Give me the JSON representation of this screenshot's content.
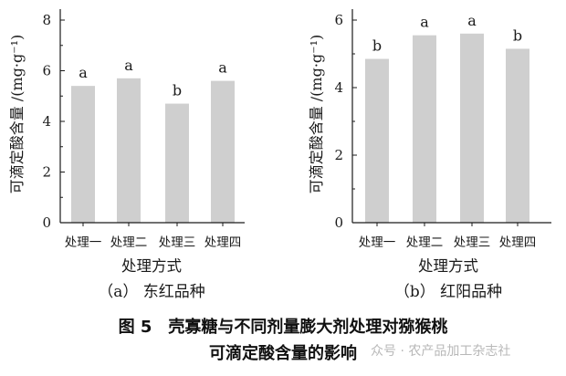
{
  "chart_data": [
    {
      "type": "bar",
      "panel_label": "（a） 东红品种",
      "xlabel": "处理方式",
      "ylabel": "可滴定酸含量 /(mg·g⁻¹)",
      "categories": [
        "处理一",
        "处理二",
        "处理三",
        "处理四"
      ],
      "values": [
        5.4,
        5.7,
        4.7,
        5.6
      ],
      "significance_letters": [
        "a",
        "a",
        "b",
        "a"
      ],
      "ylim": [
        0,
        8
      ],
      "yticks": [
        0,
        2,
        4,
        6,
        8
      ],
      "bar_color": "#cfcfcf",
      "grid": false
    },
    {
      "type": "bar",
      "panel_label": "（b） 红阳品种",
      "xlabel": "处理方式",
      "ylabel": "可滴定酸含量 /(mg·g⁻¹)",
      "categories": [
        "处理一",
        "处理二",
        "处理三",
        "处理四"
      ],
      "values": [
        4.85,
        5.55,
        5.6,
        5.15
      ],
      "significance_letters": [
        "b",
        "a",
        "a",
        "b"
      ],
      "ylim": [
        0,
        6
      ],
      "yticks": [
        0,
        2,
        4,
        6
      ],
      "bar_color": "#cfcfcf",
      "grid": false
    }
  ],
  "caption": {
    "line1": "图 5　壳寡糖与不同剂量膨大剂处理对猕猴桃",
    "line2": "可滴定酸含量的影响"
  },
  "watermark": "众号 · 农产品加工杂志社"
}
